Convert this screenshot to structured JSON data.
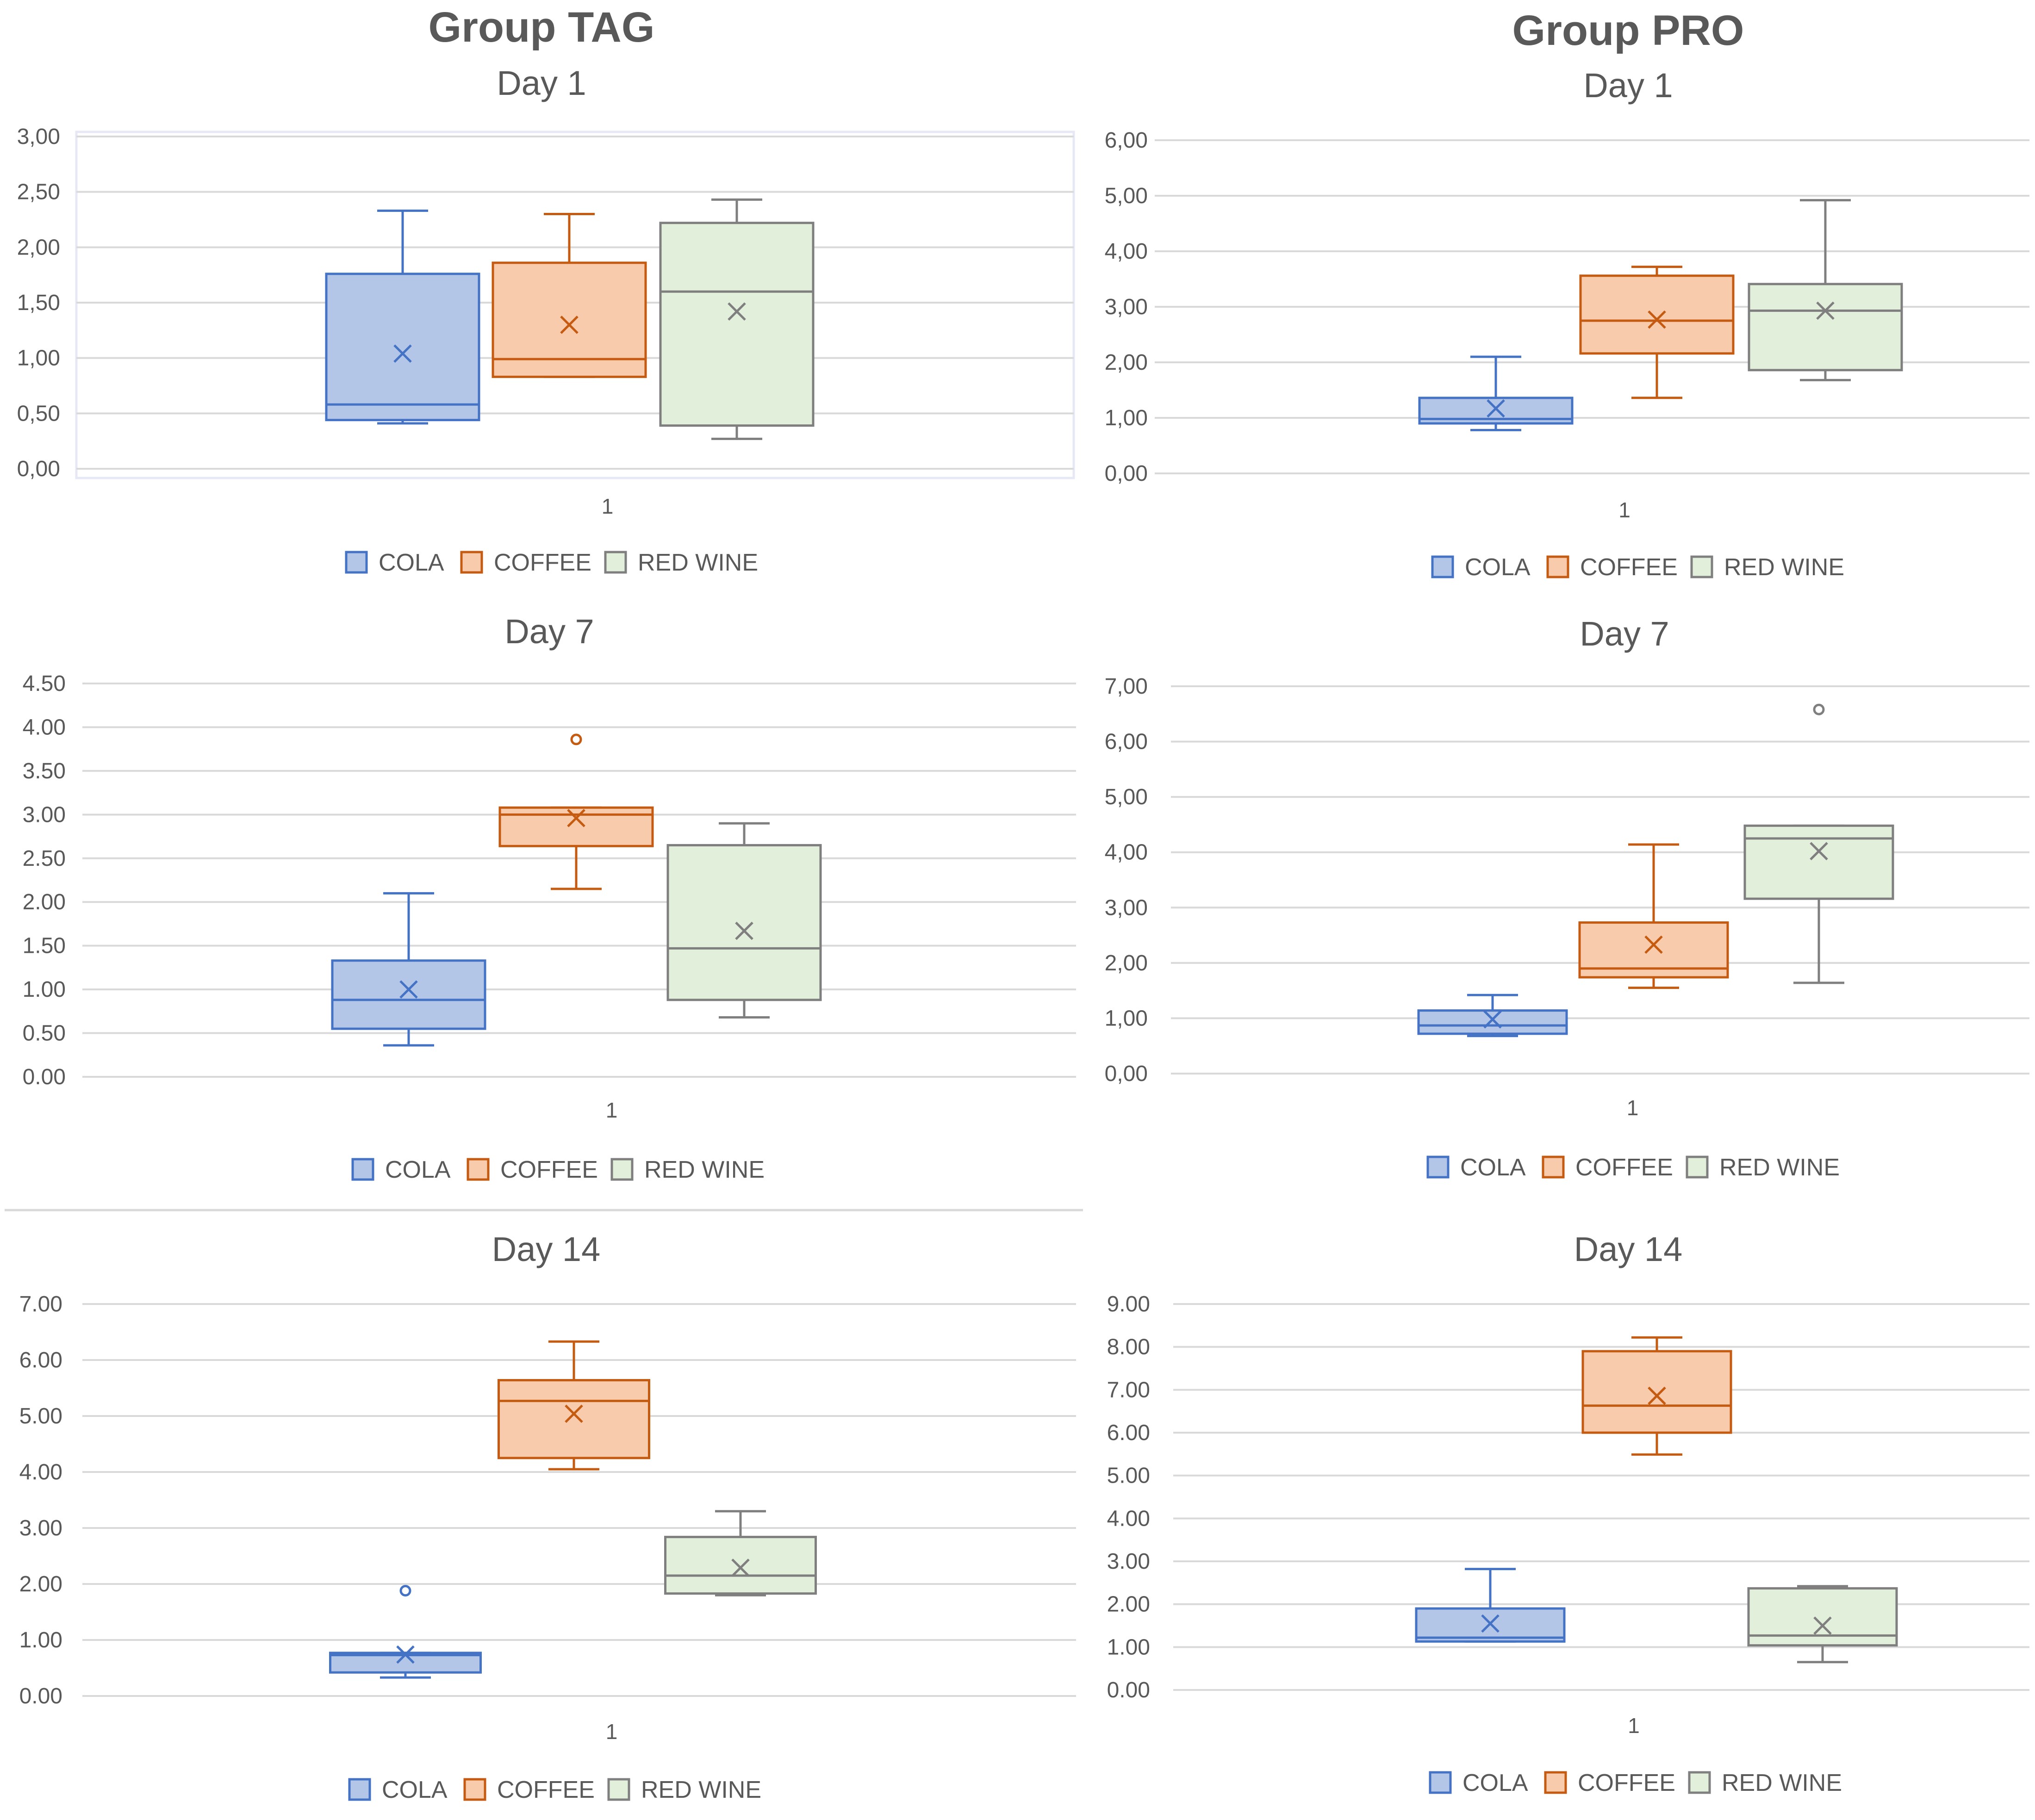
{
  "colors": {
    "cola": {
      "fill": "#b4c6e7",
      "stroke": "#4472c4"
    },
    "coffee": {
      "fill": "#f8cbad",
      "stroke": "#c55a11"
    },
    "redwine": {
      "fill": "#e2efda",
      "stroke": "#7f7f7f"
    },
    "grid": "#d9d9d9",
    "text": "#595959"
  },
  "groups": [
    {
      "title": "Group TAG"
    },
    {
      "title": "Group PRO"
    }
  ],
  "chart_data": [
    {
      "type": "box",
      "group": "Group TAG",
      "title": "Day 1",
      "categories": [
        "1"
      ],
      "ylim": [
        0,
        3
      ],
      "yticks": [
        "0,00",
        "0,50",
        "1,00",
        "1,50",
        "2,00",
        "2,50",
        "3,00"
      ],
      "series": [
        {
          "name": "COLA",
          "min": 0.41,
          "q1": 0.44,
          "median": 0.58,
          "q3": 1.76,
          "max": 2.33,
          "mean": 1.04,
          "outliers": []
        },
        {
          "name": "COFFEE",
          "min": 0.83,
          "q1": 0.83,
          "median": 0.99,
          "q3": 1.86,
          "max": 2.3,
          "mean": 1.3,
          "outliers": []
        },
        {
          "name": "RED WINE",
          "min": 0.27,
          "q1": 0.39,
          "median": 1.6,
          "q3": 2.22,
          "max": 2.43,
          "mean": 1.42,
          "outliers": []
        }
      ],
      "legend": [
        "COLA",
        "COFFEE",
        "RED WINE"
      ]
    },
    {
      "type": "box",
      "group": "Group PRO",
      "title": "Day 1",
      "categories": [
        "1"
      ],
      "ylim": [
        0,
        6
      ],
      "yticks": [
        "0,00",
        "1,00",
        "2,00",
        "3,00",
        "4,00",
        "5,00",
        "6,00"
      ],
      "series": [
        {
          "name": "COLA",
          "min": 0.78,
          "q1": 0.9,
          "median": 0.98,
          "q3": 1.36,
          "max": 2.1,
          "mean": 1.17,
          "outliers": []
        },
        {
          "name": "COFFEE",
          "min": 1.36,
          "q1": 2.16,
          "median": 2.75,
          "q3": 3.56,
          "max": 3.72,
          "mean": 2.77,
          "outliers": []
        },
        {
          "name": "RED WINE",
          "min": 1.68,
          "q1": 1.86,
          "median": 2.93,
          "q3": 3.41,
          "max": 4.92,
          "mean": 2.93,
          "outliers": []
        }
      ],
      "legend": [
        "COLA",
        "COFFEE",
        "RED WINE"
      ]
    },
    {
      "type": "box",
      "group": "Group TAG",
      "title": "Day 7",
      "categories": [
        "1"
      ],
      "ylim": [
        0,
        4.5
      ],
      "yticks": [
        "0.00",
        "0.50",
        "1.00",
        "1.50",
        "2.00",
        "2.50",
        "3.00",
        "3.50",
        "4.00",
        "4.50"
      ],
      "series": [
        {
          "name": "COLA",
          "min": 0.36,
          "q1": 0.55,
          "median": 0.88,
          "q3": 1.33,
          "max": 2.1,
          "mean": 1.0,
          "outliers": []
        },
        {
          "name": "COFFEE",
          "min": 2.15,
          "q1": 2.64,
          "median": 3.0,
          "q3": 3.08,
          "max": 3.08,
          "mean": 2.96,
          "outliers": [
            3.86
          ]
        },
        {
          "name": "RED WINE",
          "min": 0.68,
          "q1": 0.88,
          "median": 1.47,
          "q3": 2.65,
          "max": 2.9,
          "mean": 1.67,
          "outliers": []
        }
      ],
      "legend": [
        "COLA",
        "COFFEE",
        "RED WINE"
      ]
    },
    {
      "type": "box",
      "group": "Group PRO",
      "title": "Day 7",
      "categories": [
        "1"
      ],
      "ylim": [
        0,
        7
      ],
      "yticks": [
        "0,00",
        "1,00",
        "2,00",
        "3,00",
        "4,00",
        "5,00",
        "6,00",
        "7,00"
      ],
      "series": [
        {
          "name": "COLA",
          "min": 0.68,
          "q1": 0.72,
          "median": 0.87,
          "q3": 1.14,
          "max": 1.42,
          "mean": 0.98,
          "outliers": []
        },
        {
          "name": "COFFEE",
          "min": 1.55,
          "q1": 1.74,
          "median": 1.9,
          "q3": 2.73,
          "max": 4.14,
          "mean": 2.33,
          "outliers": []
        },
        {
          "name": "RED WINE",
          "min": 1.64,
          "q1": 3.16,
          "median": 4.25,
          "q3": 4.48,
          "max": 4.48,
          "mean": 4.02,
          "outliers": [
            6.58
          ]
        }
      ],
      "legend": [
        "COLA",
        "COFFEE",
        "RED WINE"
      ]
    },
    {
      "type": "box",
      "group": "Group TAG",
      "title": "Day 14",
      "categories": [
        "1"
      ],
      "ylim": [
        0,
        7
      ],
      "yticks": [
        "0.00",
        "1.00",
        "2.00",
        "3.00",
        "4.00",
        "5.00",
        "6.00",
        "7.00"
      ],
      "series": [
        {
          "name": "COLA",
          "min": 0.33,
          "q1": 0.42,
          "median": 0.73,
          "q3": 0.77,
          "max": 0.77,
          "mean": 0.74,
          "outliers": [
            1.88
          ]
        },
        {
          "name": "COFFEE",
          "min": 4.05,
          "q1": 4.25,
          "median": 5.27,
          "q3": 5.64,
          "max": 6.33,
          "mean": 5.04,
          "outliers": []
        },
        {
          "name": "RED WINE",
          "min": 1.8,
          "q1": 1.83,
          "median": 2.15,
          "q3": 2.84,
          "max": 3.3,
          "mean": 2.29,
          "outliers": []
        }
      ],
      "legend": [
        "COLA",
        "COFFEE",
        "RED WINE"
      ]
    },
    {
      "type": "box",
      "group": "Group PRO",
      "title": "Day 14",
      "categories": [
        "1"
      ],
      "ylim": [
        0,
        9
      ],
      "yticks": [
        "0.00",
        "1.00",
        "2.00",
        "3.00",
        "4.00",
        "5.00",
        "6.00",
        "7.00",
        "8.00",
        "9.00"
      ],
      "series": [
        {
          "name": "COLA",
          "min": 1.13,
          "q1": 1.13,
          "median": 1.22,
          "q3": 1.9,
          "max": 2.82,
          "mean": 1.55,
          "outliers": []
        },
        {
          "name": "COFFEE",
          "min": 5.49,
          "q1": 6.0,
          "median": 6.63,
          "q3": 7.9,
          "max": 8.22,
          "mean": 6.86,
          "outliers": []
        },
        {
          "name": "RED WINE",
          "min": 0.65,
          "q1": 1.04,
          "median": 1.27,
          "q3": 2.37,
          "max": 2.42,
          "mean": 1.5,
          "outliers": []
        }
      ],
      "legend": [
        "COLA",
        "COFFEE",
        "RED WINE"
      ]
    }
  ]
}
